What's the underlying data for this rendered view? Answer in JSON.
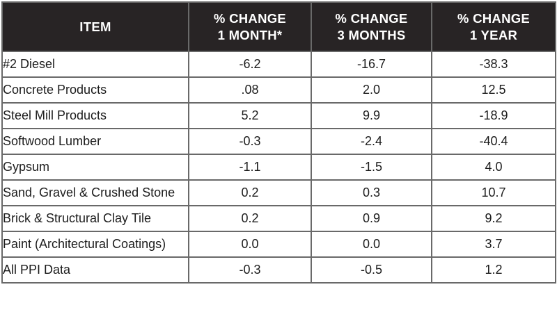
{
  "table": {
    "header": {
      "item_label": "ITEM",
      "col1_line1": "% CHANGE",
      "col1_line2": "1 MONTH*",
      "col2_line1": "% CHANGE",
      "col2_line2": "3 MONTHS",
      "col3_line1": "% CHANGE",
      "col3_line2": "1 YEAR"
    },
    "rows": [
      {
        "item": "#2 Diesel",
        "m1": "-6.2",
        "m3": "-16.7",
        "y1": "-38.3"
      },
      {
        "item": "Concrete Products",
        "m1": ".08",
        "m3": "2.0",
        "y1": "12.5"
      },
      {
        "item": "Steel Mill Products",
        "m1": "5.2",
        "m3": "9.9",
        "y1": "-18.9"
      },
      {
        "item": "Softwood Lumber",
        "m1": "-0.3",
        "m3": "-2.4",
        "y1": "-40.4"
      },
      {
        "item": "Gypsum",
        "m1": "-1.1",
        "m3": "-1.5",
        "y1": "4.0"
      },
      {
        "item": "Sand, Gravel & Crushed Stone",
        "m1": "0.2",
        "m3": "0.3",
        "y1": "10.7"
      },
      {
        "item": "Brick & Structural Clay Tile",
        "m1": "0.2",
        "m3": "0.9",
        "y1": "9.2"
      },
      {
        "item": "Paint (Architectural Coatings)",
        "m1": "0.0",
        "m3": "0.0",
        "y1": "3.7"
      },
      {
        "item": "All PPI Data",
        "m1": "-0.3",
        "m3": "-0.5",
        "y1": "1.2"
      }
    ]
  },
  "colors": {
    "header_bg": "#282425",
    "header_text": "#ffffff",
    "grid_line": "#696969",
    "outer_border": "#3a3a3a",
    "body_text": "#1c1c1c",
    "row_bg": "#ffffff"
  },
  "chart_data": {
    "type": "table",
    "title": "",
    "columns": [
      "ITEM",
      "% CHANGE 1 MONTH*",
      "% CHANGE 3 MONTHS",
      "% CHANGE 1 YEAR"
    ],
    "rows": [
      [
        "#2 Diesel",
        -6.2,
        -16.7,
        -38.3
      ],
      [
        "Concrete Products",
        0.08,
        2.0,
        12.5
      ],
      [
        "Steel Mill Products",
        5.2,
        9.9,
        -18.9
      ],
      [
        "Softwood Lumber",
        -0.3,
        -2.4,
        -40.4
      ],
      [
        "Gypsum",
        -1.1,
        -1.5,
        4.0
      ],
      [
        "Sand, Gravel & Crushed Stone",
        0.2,
        0.3,
        10.7
      ],
      [
        "Brick & Structural Clay Tile",
        0.2,
        0.9,
        9.2
      ],
      [
        "Paint (Architectural Coatings)",
        0.0,
        0.0,
        3.7
      ],
      [
        "All PPI Data",
        -0.3,
        -0.5,
        1.2
      ]
    ]
  }
}
